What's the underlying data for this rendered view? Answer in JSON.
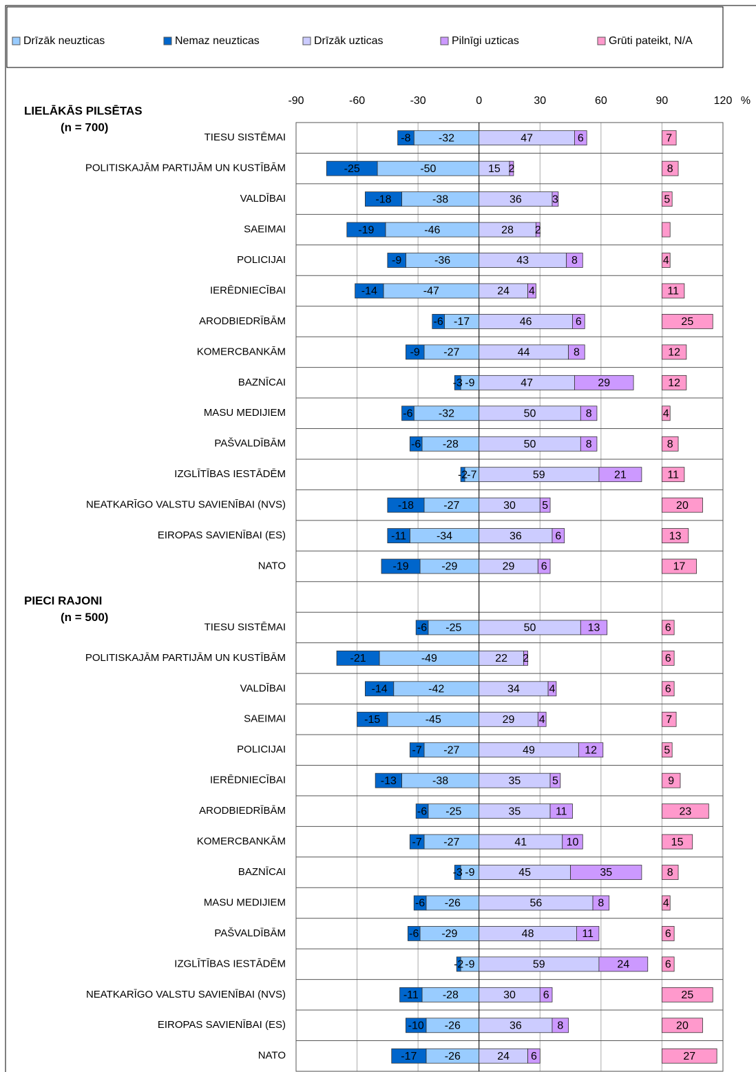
{
  "chart_data": {
    "type": "diverging_bar",
    "x_unit": "%",
    "xlim": [
      -90,
      120
    ],
    "xticks": [
      -90,
      -60,
      -30,
      0,
      30,
      60,
      90,
      120
    ],
    "grid": true,
    "series": [
      {
        "name": "Drīzāk neuzticas",
        "color": "#99ccff"
      },
      {
        "name": "Nemaz neuzticas",
        "color": "#0066cc"
      },
      {
        "name": "Drīzāk uzticas",
        "color": "#ccccff"
      },
      {
        "name": "Pilnīgi uzticas",
        "color": "#cc99ff"
      },
      {
        "name": "Grūti pateikt, N/A",
        "color": "#ff99cc",
        "start": 90
      }
    ],
    "groups": [
      {
        "title": "LIELĀKĀS PILSĒTAS",
        "subtitle": "(n = 700)",
        "categories": [
          "TIESU SISTĒMAI",
          "POLITISKAJĀM PARTIJĀM UN KUSTĪBĀM",
          "VALDĪBAI",
          "SAEIMAI",
          "POLICIJAI",
          "IERĒDNIECĪBAI",
          "ARODBIEDRĪBĀM",
          "KOMERCBANKĀM",
          "BAZNĪCAI",
          "MASU MEDIJIEM",
          "PAŠVALDĪBĀM",
          "IZGLĪTĪBAS IESTĀDĒM",
          "NEATKARĪGO VALSTU SAVIENĪBAI (NVS)",
          "EIROPAS SAVIENĪBAI (ES)",
          "NATO"
        ],
        "series": [
          {
            "values": [
              -32,
              -50,
              -38,
              -46,
              -36,
              -47,
              -17,
              -27,
              -9,
              -32,
              -28,
              -7,
              -27,
              -34,
              -29
            ]
          },
          {
            "values": [
              -8,
              -25,
              -18,
              -19,
              -9,
              -14,
              -6,
              -9,
              -3,
              -6,
              -6,
              -2,
              -18,
              -11,
              -19
            ]
          },
          {
            "values": [
              47,
              15,
              36,
              28,
              43,
              24,
              46,
              44,
              47,
              50,
              50,
              59,
              30,
              36,
              29
            ]
          },
          {
            "values": [
              6,
              2,
              3,
              2,
              8,
              4,
              6,
              8,
              29,
              8,
              8,
              21,
              5,
              6,
              6
            ]
          },
          {
            "values": [
              7,
              8,
              5,
              4,
              4,
              11,
              25,
              12,
              12,
              4,
              8,
              11,
              20,
              13,
              17
            ],
            "value_labels": [
              "7",
              "8",
              "5",
              null,
              "4",
              "11",
              "25",
              "12",
              "12",
              "4",
              "8",
              "11",
              "20",
              "13",
              "17"
            ]
          }
        ]
      },
      {
        "title": "PIECI RAJONI",
        "subtitle": "(n = 500)",
        "categories": [
          "TIESU SISTĒMAI",
          "POLITISKAJĀM PARTIJĀM UN KUSTĪBĀM",
          "VALDĪBAI",
          "SAEIMAI",
          "POLICIJAI",
          "IERĒDNIECĪBAI",
          "ARODBIEDRĪBĀM",
          "KOMERCBANKĀM",
          "BAZNĪCAI",
          "MASU MEDIJIEM",
          "PAŠVALDĪBĀM",
          "IZGLĪTĪBAS IESTĀDĒM",
          "NEATKARĪGO VALSTU SAVIENĪBAI (NVS)",
          "EIROPAS SAVIENĪBAI (ES)",
          "NATO"
        ],
        "series": [
          {
            "values": [
              -25,
              -49,
              -42,
              -45,
              -27,
              -38,
              -25,
              -27,
              -9,
              -26,
              -29,
              -9,
              -28,
              -26,
              -26
            ]
          },
          {
            "values": [
              -6,
              -21,
              -14,
              -15,
              -7,
              -13,
              -6,
              -7,
              -3,
              -6,
              -6,
              -2,
              -11,
              -10,
              -17
            ]
          },
          {
            "values": [
              50,
              22,
              34,
              29,
              49,
              35,
              35,
              41,
              45,
              56,
              48,
              59,
              30,
              36,
              24
            ]
          },
          {
            "values": [
              13,
              2,
              4,
              4,
              12,
              5,
              11,
              10,
              35,
              8,
              11,
              24,
              6,
              8,
              6
            ]
          },
          {
            "values": [
              6,
              6,
              6,
              7,
              5,
              9,
              23,
              15,
              8,
              4,
              6,
              6,
              25,
              20,
              27
            ]
          }
        ]
      }
    ]
  }
}
